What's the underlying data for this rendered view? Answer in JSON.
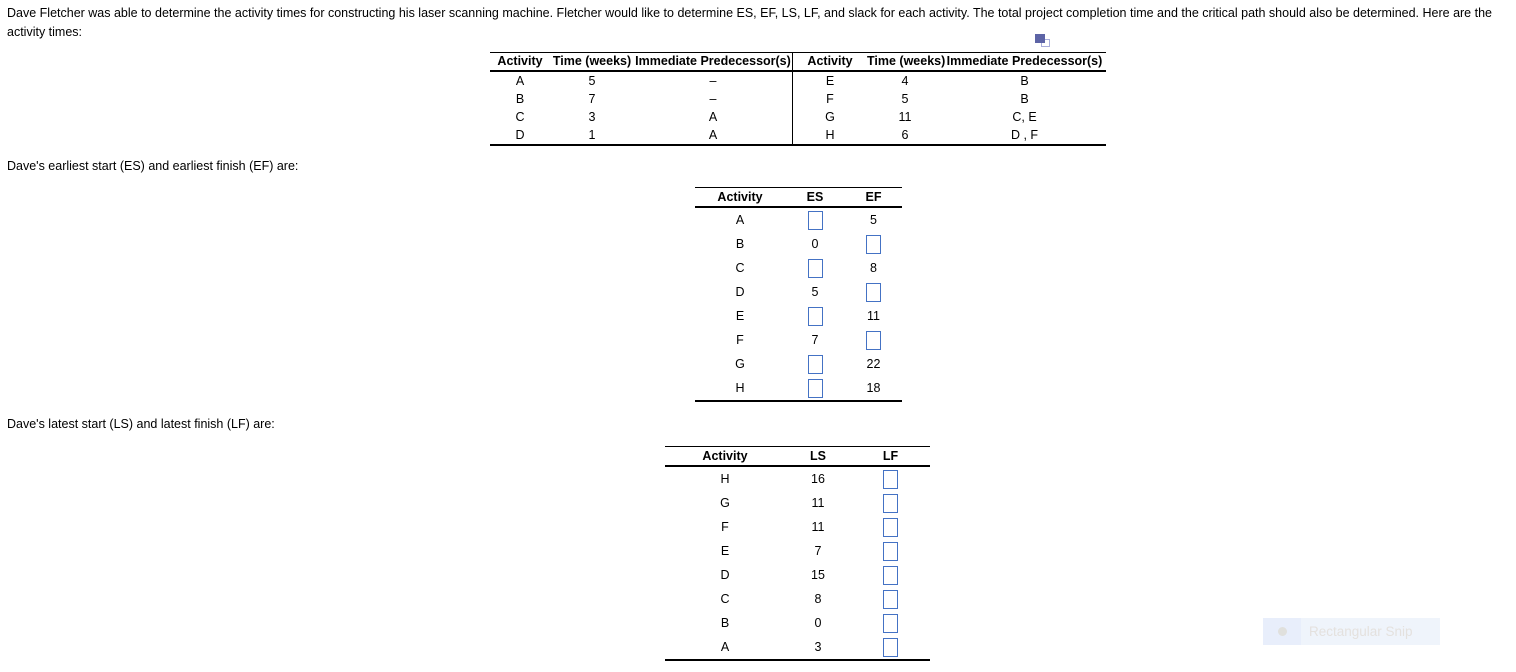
{
  "colors": {
    "answer_box_border": "#4472c4",
    "copy_icon_fill": "#5d64a6",
    "copy_icon_outline": "#a9aedb",
    "snip_bg": "#eff4fb",
    "snip_icon_bg": "#e8eefb",
    "snip_dot": "#e0e0dd",
    "snip_text": "#e4e1de"
  },
  "intro": {
    "line1": "Dave Fletcher was able to determine the activity times for constructing his laser scanning machine. Fletcher would like to determine ES, EF, LS, LF, and slack for each activity. The total project completion time and the critical path should also be determined. Here are the",
    "line2": "activity times:"
  },
  "section_labels": {
    "es_ef": "Dave's earliest start (ES) and earliest finish (EF) are:",
    "ls_lf": "Dave's latest start (LS) and latest finish (LF) are:"
  },
  "activity_table": {
    "headers": [
      "Activity",
      "Time (weeks)",
      "Immediate Predecessor(s)"
    ],
    "left_rows": [
      {
        "activity": "A",
        "time": "5",
        "pred": "–"
      },
      {
        "activity": "B",
        "time": "7",
        "pred": "–"
      },
      {
        "activity": "C",
        "time": "3",
        "pred": "A"
      },
      {
        "activity": "D",
        "time": "1",
        "pred": "A"
      }
    ],
    "right_rows": [
      {
        "activity": "E",
        "time": "4",
        "pred": "B"
      },
      {
        "activity": "F",
        "time": "5",
        "pred": "B"
      },
      {
        "activity": "G",
        "time": "11",
        "pred": "C, E"
      },
      {
        "activity": "H",
        "time": "6",
        "pred": "D , F"
      }
    ]
  },
  "es_ef_table": {
    "headers": [
      "Activity",
      "ES",
      "EF"
    ],
    "rows": [
      {
        "activity": "A",
        "es": null,
        "ef": "5"
      },
      {
        "activity": "B",
        "es": "0",
        "ef": null
      },
      {
        "activity": "C",
        "es": null,
        "ef": "8"
      },
      {
        "activity": "D",
        "es": "5",
        "ef": null
      },
      {
        "activity": "E",
        "es": null,
        "ef": "11"
      },
      {
        "activity": "F",
        "es": "7",
        "ef": null
      },
      {
        "activity": "G",
        "es": null,
        "ef": "22"
      },
      {
        "activity": "H",
        "es": null,
        "ef": "18"
      }
    ]
  },
  "ls_lf_table": {
    "headers": [
      "Activity",
      "LS",
      "LF"
    ],
    "rows": [
      {
        "activity": "H",
        "ls": "16",
        "lf": null
      },
      {
        "activity": "G",
        "ls": "11",
        "lf": null
      },
      {
        "activity": "F",
        "ls": "11",
        "lf": null
      },
      {
        "activity": "E",
        "ls": "7",
        "lf": null
      },
      {
        "activity": "D",
        "ls": "15",
        "lf": null
      },
      {
        "activity": "C",
        "ls": "8",
        "lf": null
      },
      {
        "activity": "B",
        "ls": "0",
        "lf": null
      },
      {
        "activity": "A",
        "ls": "3",
        "lf": null
      }
    ]
  },
  "snip_tooltip": {
    "label": "Rectangular Snip"
  }
}
